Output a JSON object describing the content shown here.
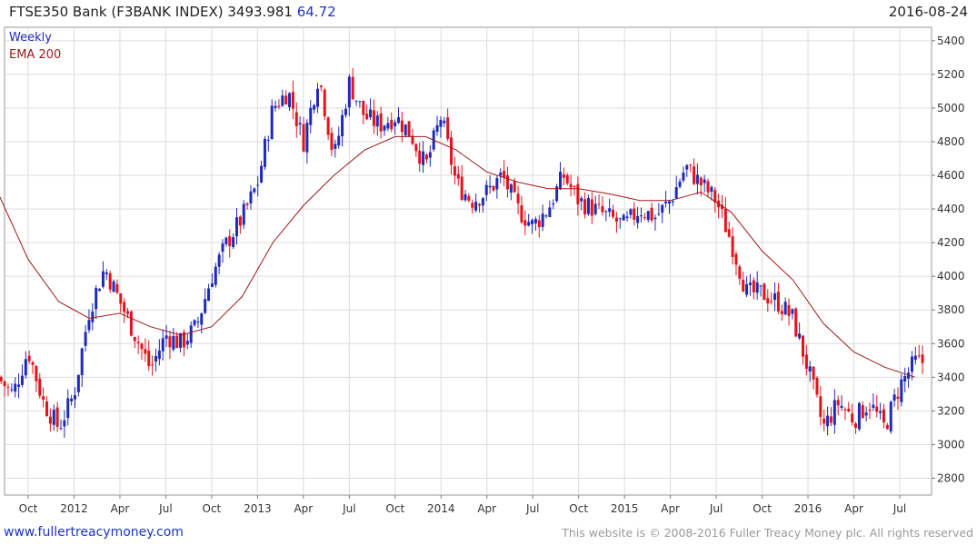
{
  "header": {
    "title": "FTSE350 Bank (F3BANK INDEX)",
    "last": "3493.981",
    "change": "64.72",
    "date": "2016-08-24"
  },
  "footer": {
    "site": "www.fullertreacymoney.com",
    "copyright": "This website is © 2008-2016 Fuller Treacy Money plc. All rights reserved"
  },
  "chart_data": {
    "type": "line",
    "subtype": "weekly candlestick with moving average",
    "legend": [
      "Weekly",
      "EMA 200"
    ],
    "legend_position": "top-left",
    "y_axis_side": "right",
    "ylim": [
      2700,
      5480
    ],
    "yticks": [
      2800,
      3000,
      3200,
      3400,
      3600,
      3800,
      4000,
      4200,
      4400,
      4600,
      4800,
      5000,
      5200,
      5400
    ],
    "grid": true,
    "x_ticks": [
      {
        "label": "Oct",
        "date": "2011-10"
      },
      {
        "label": "2012",
        "date": "2012-01"
      },
      {
        "label": "Apr",
        "date": "2012-04"
      },
      {
        "label": "Jul",
        "date": "2012-07"
      },
      {
        "label": "Oct",
        "date": "2012-10"
      },
      {
        "label": "2013",
        "date": "2013-01"
      },
      {
        "label": "Apr",
        "date": "2013-04"
      },
      {
        "label": "Jul",
        "date": "2013-07"
      },
      {
        "label": "Oct",
        "date": "2013-10"
      },
      {
        "label": "2014",
        "date": "2014-01"
      },
      {
        "label": "Apr",
        "date": "2014-04"
      },
      {
        "label": "Jul",
        "date": "2014-07"
      },
      {
        "label": "Oct",
        "date": "2014-10"
      },
      {
        "label": "2015",
        "date": "2015-01"
      },
      {
        "label": "Apr",
        "date": "2015-04"
      },
      {
        "label": "Jul",
        "date": "2015-07"
      },
      {
        "label": "Oct",
        "date": "2015-10"
      },
      {
        "label": "2016",
        "date": "2016-01"
      },
      {
        "label": "Apr",
        "date": "2016-04"
      },
      {
        "label": "Jul",
        "date": "2016-07"
      }
    ],
    "colors": {
      "up": "#1f2ab8",
      "down": "#e0141c",
      "ema": "#a01818",
      "grid": "#dcdcdc"
    },
    "weekly_close_path": [
      [
        "2011-08",
        3400
      ],
      [
        "2011-09",
        3300
      ],
      [
        "2011-10",
        3560
      ],
      [
        "2011-11",
        3250
      ],
      [
        "2011-12",
        3100
      ],
      [
        "2012-01",
        3300
      ],
      [
        "2012-02",
        3800
      ],
      [
        "2012-03",
        4050
      ],
      [
        "2012-04",
        3850
      ],
      [
        "2012-05",
        3650
      ],
      [
        "2012-06",
        3450
      ],
      [
        "2012-07",
        3650
      ],
      [
        "2012-08",
        3600
      ],
      [
        "2012-09",
        3700
      ],
      [
        "2012-10",
        4000
      ],
      [
        "2012-11",
        4200
      ],
      [
        "2012-12",
        4350
      ],
      [
        "2013-01",
        4550
      ],
      [
        "2013-02",
        5000
      ],
      [
        "2013-03",
        5100
      ],
      [
        "2013-04",
        4800
      ],
      [
        "2013-05",
        5200
      ],
      [
        "2013-06",
        4700
      ],
      [
        "2013-07",
        5150
      ],
      [
        "2013-08",
        4950
      ],
      [
        "2013-09",
        4900
      ],
      [
        "2013-10",
        4950
      ],
      [
        "2013-11",
        4850
      ],
      [
        "2013-12",
        4650
      ],
      [
        "2014-01",
        4950
      ],
      [
        "2014-02",
        4550
      ],
      [
        "2014-03",
        4450
      ],
      [
        "2014-04",
        4500
      ],
      [
        "2014-05",
        4600
      ],
      [
        "2014-06",
        4400
      ],
      [
        "2014-07",
        4300
      ],
      [
        "2014-08",
        4400
      ],
      [
        "2014-09",
        4600
      ],
      [
        "2014-10",
        4450
      ],
      [
        "2014-11",
        4400
      ],
      [
        "2014-12",
        4350
      ],
      [
        "2015-01",
        4300
      ],
      [
        "2015-02",
        4400
      ],
      [
        "2015-03",
        4350
      ],
      [
        "2015-04",
        4450
      ],
      [
        "2015-05",
        4650
      ],
      [
        "2015-06",
        4550
      ],
      [
        "2015-07",
        4450
      ],
      [
        "2015-08",
        4200
      ],
      [
        "2015-09",
        3900
      ],
      [
        "2015-10",
        3900
      ],
      [
        "2015-11",
        3850
      ],
      [
        "2015-12",
        3750
      ],
      [
        "2016-01",
        3450
      ],
      [
        "2016-02",
        3100
      ],
      [
        "2016-03",
        3250
      ],
      [
        "2016-04",
        3150
      ],
      [
        "2016-05",
        3250
      ],
      [
        "2016-06",
        3100
      ],
      [
        "2016-07",
        3350
      ],
      [
        "2016-08",
        3490
      ]
    ],
    "ema_path": [
      [
        "2011-08",
        4500
      ],
      [
        "2011-10",
        4100
      ],
      [
        "2011-12",
        3850
      ],
      [
        "2012-02",
        3750
      ],
      [
        "2012-04",
        3780
      ],
      [
        "2012-06",
        3700
      ],
      [
        "2012-08",
        3650
      ],
      [
        "2012-10",
        3700
      ],
      [
        "2012-12",
        3880
      ],
      [
        "2013-02",
        4200
      ],
      [
        "2013-04",
        4420
      ],
      [
        "2013-06",
        4600
      ],
      [
        "2013-08",
        4750
      ],
      [
        "2013-10",
        4830
      ],
      [
        "2013-12",
        4830
      ],
      [
        "2014-02",
        4750
      ],
      [
        "2014-04",
        4620
      ],
      [
        "2014-06",
        4560
      ],
      [
        "2014-08",
        4520
      ],
      [
        "2014-10",
        4520
      ],
      [
        "2014-12",
        4490
      ],
      [
        "2015-02",
        4450
      ],
      [
        "2015-04",
        4450
      ],
      [
        "2015-06",
        4500
      ],
      [
        "2015-08",
        4380
      ],
      [
        "2015-10",
        4150
      ],
      [
        "2015-12",
        3980
      ],
      [
        "2016-02",
        3720
      ],
      [
        "2016-04",
        3550
      ],
      [
        "2016-06",
        3460
      ],
      [
        "2016-08",
        3400
      ]
    ]
  }
}
